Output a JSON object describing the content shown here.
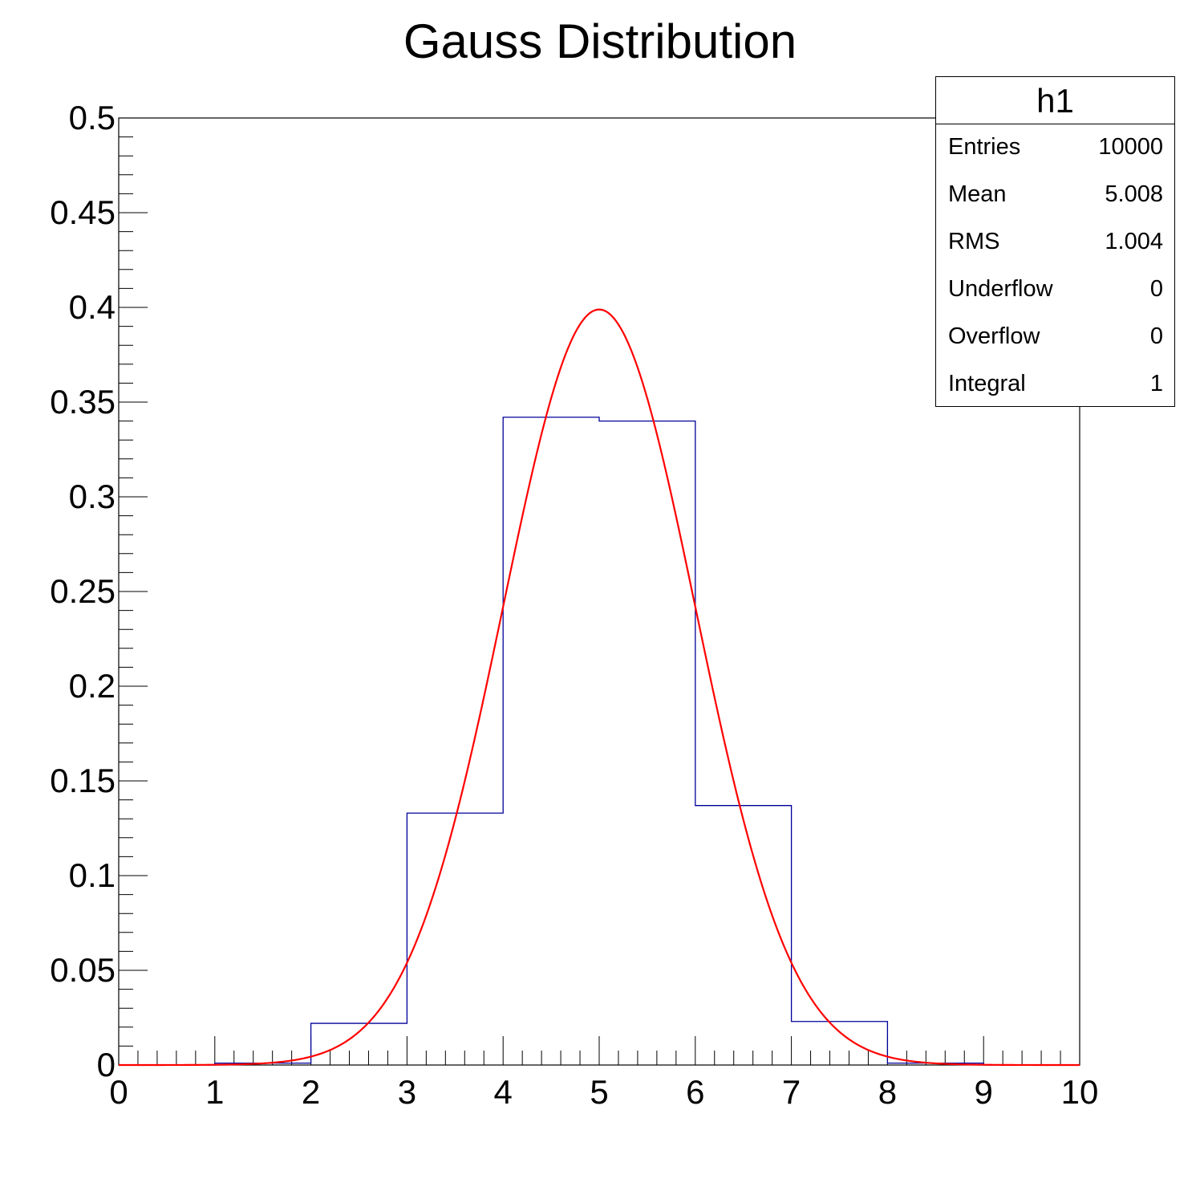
{
  "chart_data": {
    "type": "histogram",
    "title": "Gauss Distribution",
    "xlabel": "",
    "ylabel": "",
    "xlim": [
      0,
      10
    ],
    "ylim": [
      0,
      0.5
    ],
    "x_ticks": [
      "0",
      "1",
      "2",
      "3",
      "4",
      "5",
      "6",
      "7",
      "8",
      "9",
      "10"
    ],
    "y_ticks": [
      "0",
      "0.05",
      "0.1",
      "0.15",
      "0.2",
      "0.25",
      "0.3",
      "0.35",
      "0.4",
      "0.45",
      "0.5"
    ],
    "bin_edges": [
      0,
      1,
      2,
      3,
      4,
      5,
      6,
      7,
      8,
      9,
      10
    ],
    "bins": [
      0.0,
      0.001,
      0.022,
      0.133,
      0.342,
      0.34,
      0.137,
      0.023,
      0.001,
      0.0
    ],
    "fit": {
      "type": "gaussian",
      "mean": 5.0,
      "sigma": 1.0,
      "amplitude": 0.3989
    },
    "colors": {
      "histogram": "#000099",
      "fit": "#ff0000",
      "axes": "#000000"
    }
  },
  "stats": {
    "name": "h1",
    "rows": [
      {
        "label": "Entries",
        "value": "10000"
      },
      {
        "label": "Mean",
        "value": "5.008"
      },
      {
        "label": "RMS",
        "value": "1.004"
      },
      {
        "label": "Underflow",
        "value": "0"
      },
      {
        "label": "Overflow",
        "value": "0"
      },
      {
        "label": "Integral",
        "value": "1"
      }
    ]
  }
}
